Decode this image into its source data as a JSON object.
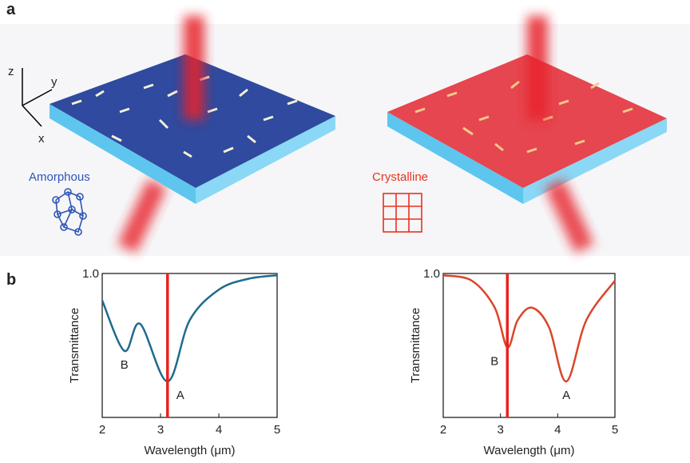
{
  "panel_labels": [
    "a",
    "b"
  ],
  "illustration": {
    "axis_labels": [
      "z",
      "y",
      "x"
    ],
    "left_label": "Amorphous",
    "right_label": "Crystalline"
  },
  "chart_data": [
    {
      "type": "line",
      "xlabel": "Wavelength (μm)",
      "ylabel": "Transmittance",
      "x": [
        2,
        2.38,
        2.65,
        3.12,
        3.5,
        4,
        4.5,
        5
      ],
      "series": [
        {
          "color": "#1f6b8e",
          "values": [
            0.85,
            0.57,
            0.72,
            0.4,
            0.74,
            0.91,
            0.97,
            0.99
          ]
        }
      ],
      "xlim": [
        2,
        5
      ],
      "xticks": [
        2,
        3,
        4,
        5
      ],
      "ylim": [
        0.2,
        1
      ],
      "yticks": [
        {
          "value": 1,
          "label": "1.0"
        }
      ],
      "vline": 3.12,
      "vline_color": "#e8231f",
      "annotations": [
        {
          "text": "B",
          "x": 2.38,
          "y": 0.57
        },
        {
          "text": "A",
          "x": 3.12,
          "y": 0.4
        }
      ]
    },
    {
      "type": "line",
      "xlabel": "Wavelength (μm)",
      "ylabel": "Transmittance",
      "x": [
        2,
        2.5,
        2.9,
        3.12,
        3.3,
        3.55,
        3.85,
        4.15,
        4.5,
        5
      ],
      "series": [
        {
          "color": "#d9462a",
          "values": [
            0.99,
            0.96,
            0.81,
            0.59,
            0.74,
            0.81,
            0.7,
            0.4,
            0.74,
            0.96
          ]
        }
      ],
      "xlim": [
        2,
        5
      ],
      "xticks": [
        2,
        3,
        4,
        5
      ],
      "ylim": [
        0.2,
        1
      ],
      "yticks": [
        {
          "value": 1,
          "label": "1.0"
        }
      ],
      "vline": 3.12,
      "vline_color": "#e8231f",
      "annotations": [
        {
          "text": "B",
          "x": 3.12,
          "y": 0.59
        },
        {
          "text": "A",
          "x": 4.15,
          "y": 0.4
        }
      ]
    }
  ]
}
